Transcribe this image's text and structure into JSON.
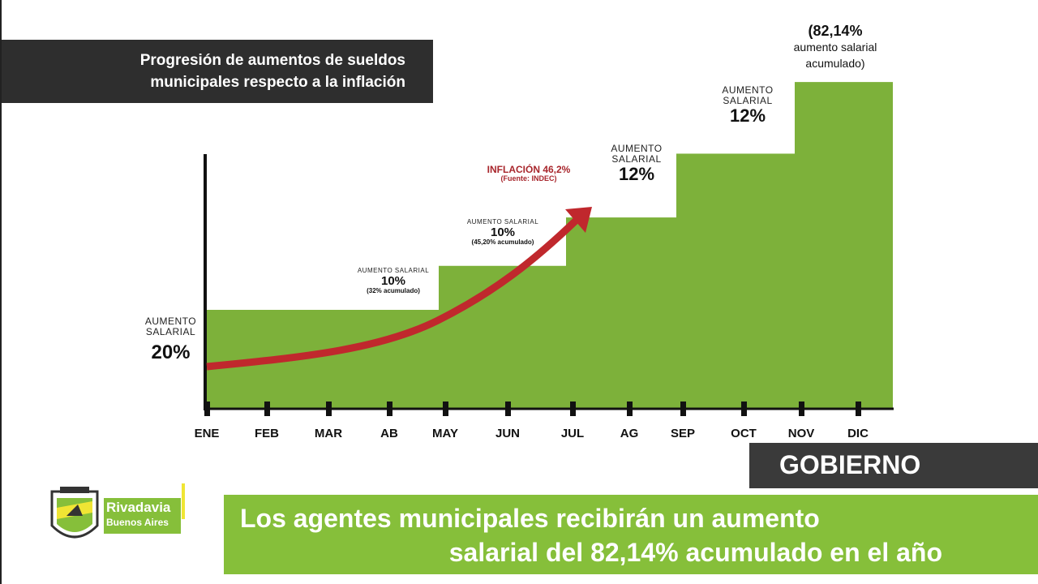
{
  "title": [
    "Progresión de aumentos de sueldos",
    "municipales respecto a la inflación"
  ],
  "chart_data": {
    "type": "area",
    "step": true,
    "title": "Progresión de aumentos de sueldos municipales respecto a la inflación",
    "categories": [
      "ENE",
      "FEB",
      "MAR",
      "AB",
      "MAY",
      "JUN",
      "JUL",
      "AG",
      "SEP",
      "OCT",
      "NOV",
      "DIC"
    ],
    "steps": [
      {
        "start": "ENE",
        "label": "AUMENTO SALARIAL",
        "percent": "20%",
        "cumulative": 20
      },
      {
        "start": "MAY",
        "label": "AUMENTO SALARIAL",
        "percent": "10%",
        "note": "(32% acumulado)",
        "cumulative": 32
      },
      {
        "start": "JUL",
        "label": "AUMENTO SALARIAL",
        "percent": "10%",
        "note": "(45,20% acumulado)",
        "cumulative": 45.2
      },
      {
        "start": "SEP",
        "label": "AUMENTO SALARIAL",
        "percent": "12%",
        "cumulative": 62.6
      },
      {
        "start": "NOV",
        "label": "AUMENTO SALARIAL",
        "percent": "12%",
        "cumulative": 82.14
      }
    ],
    "accumulated_note": {
      "value": "(82,14%",
      "line2": "aumento salarial",
      "line3": "acumulado)"
    },
    "inflation": {
      "label": "INFLACIÓN 46,2%",
      "source": "(Fuente: INDEC)",
      "value": 46.2
    },
    "colors": {
      "area": "#7db13a",
      "inflation_arrow": "#c0282d",
      "axis": "#111111"
    },
    "y_axis_ticks": false,
    "grid": false
  },
  "section_tag": "GOBIERNO",
  "headline": [
    "Los agentes municipales recibirán un aumento",
    "salarial del 82,14% acumulado en el año"
  ],
  "logo": {
    "name": "Rivadavia",
    "sub": "Buenos Aires"
  }
}
